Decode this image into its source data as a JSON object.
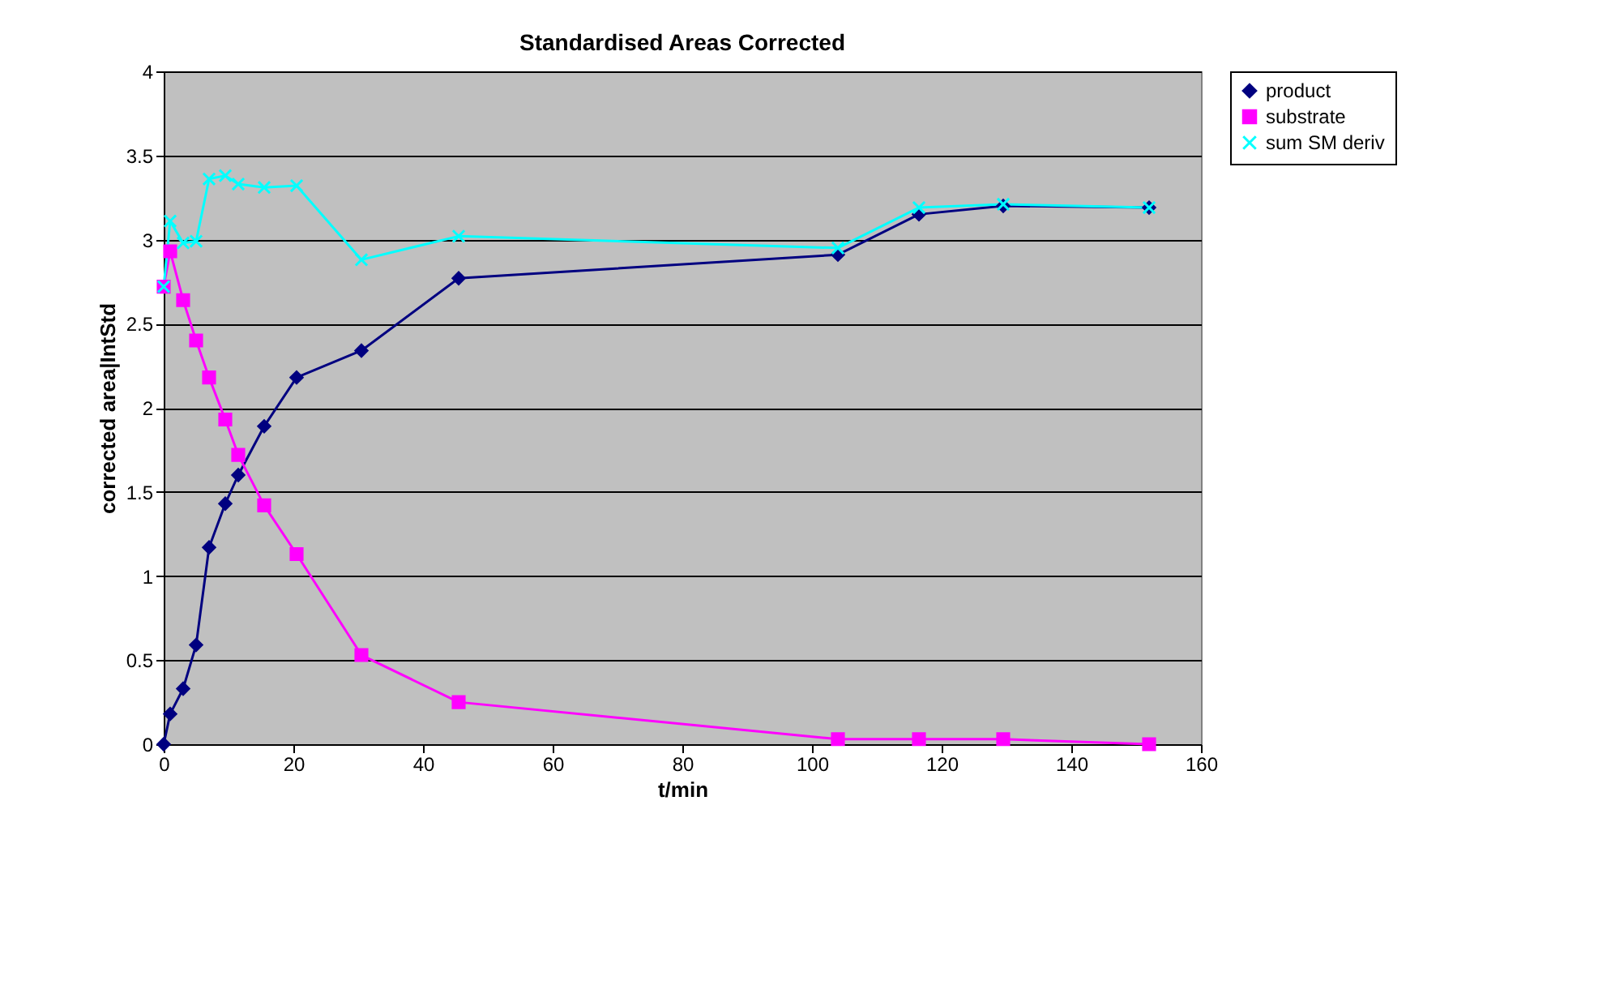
{
  "chart_data": {
    "type": "line",
    "title": "Standardised Areas Corrected",
    "xlabel": "t/min",
    "ylabel": "corrected area|IntStd",
    "xlim": [
      0,
      160
    ],
    "xticks": [
      0,
      20,
      40,
      60,
      80,
      100,
      120,
      140,
      160
    ],
    "ylim": [
      0,
      4
    ],
    "yticks": [
      0,
      0.5,
      1,
      1.5,
      2,
      2.5,
      3,
      3.5,
      4
    ],
    "grid": "y",
    "legend": "right",
    "line_style": "solid",
    "x": [
      0,
      1,
      3,
      5,
      7,
      9.5,
      11.5,
      15.5,
      20.5,
      30.5,
      45.5,
      104,
      116.5,
      129.5,
      152
    ],
    "series": [
      {
        "name": "product",
        "color": "#000080",
        "marker": "diamond",
        "values": [
          0,
          0.18,
          0.33,
          0.59,
          1.17,
          1.43,
          1.6,
          1.89,
          2.18,
          2.34,
          2.77,
          2.91,
          3.15,
          3.2,
          3.19
        ]
      },
      {
        "name": "substrate",
        "color": "#ff00ff",
        "marker": "square",
        "values": [
          2.72,
          2.93,
          2.64,
          2.4,
          2.18,
          1.93,
          1.72,
          1.42,
          1.13,
          0.53,
          0.25,
          0.03,
          0.03,
          0.03,
          0
        ]
      },
      {
        "name": "sum SM deriv",
        "color": "#00ffff",
        "marker": "cross",
        "values": [
          2.72,
          3.11,
          2.98,
          2.99,
          3.36,
          3.38,
          3.33,
          3.31,
          3.32,
          2.88,
          3.02,
          2.95,
          3.19,
          3.21,
          3.19
        ]
      }
    ]
  }
}
